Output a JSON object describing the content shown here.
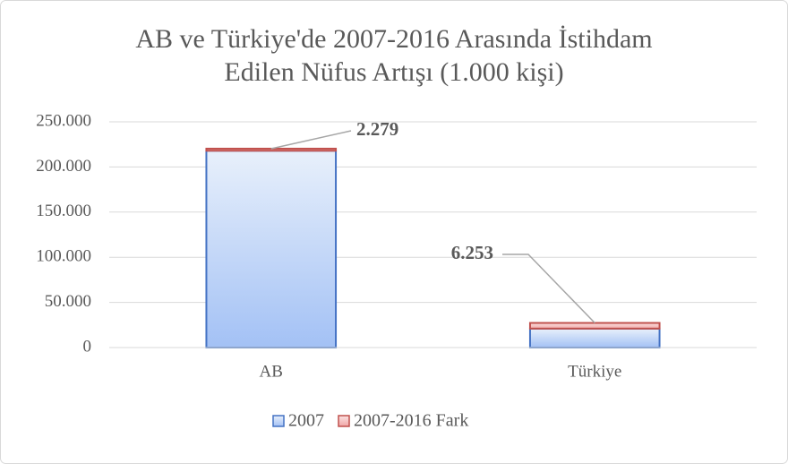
{
  "chart_data": {
    "type": "stacked_bar",
    "title": [
      "AB ve Türkiye'de 2007-2016 Arasında İstihdam",
      "Edilen Nüfus Artışı  (1.000 kişi)"
    ],
    "categories": [
      "AB",
      "Türkiye"
    ],
    "series": [
      {
        "name": "2007",
        "color": "#4472c4",
        "values": [
          218000,
          21000
        ]
      },
      {
        "name": "2007-2016 Fark",
        "color": "#c0504d",
        "values": [
          2279,
          6253
        ],
        "value_labels": [
          "2.279",
          "6.253"
        ]
      }
    ],
    "ylim": [
      0,
      250000
    ],
    "yticks": [
      0,
      {
        "value": 50000,
        "label": "50.000"
      },
      {
        "value": 100000,
        "label": "100.000"
      },
      {
        "value": 150000,
        "label": "150.000"
      },
      {
        "value": 200000,
        "label": "200.000"
      },
      {
        "value": 250000,
        "label": "250.000"
      }
    ],
    "grid": true,
    "legend": "bottom"
  }
}
